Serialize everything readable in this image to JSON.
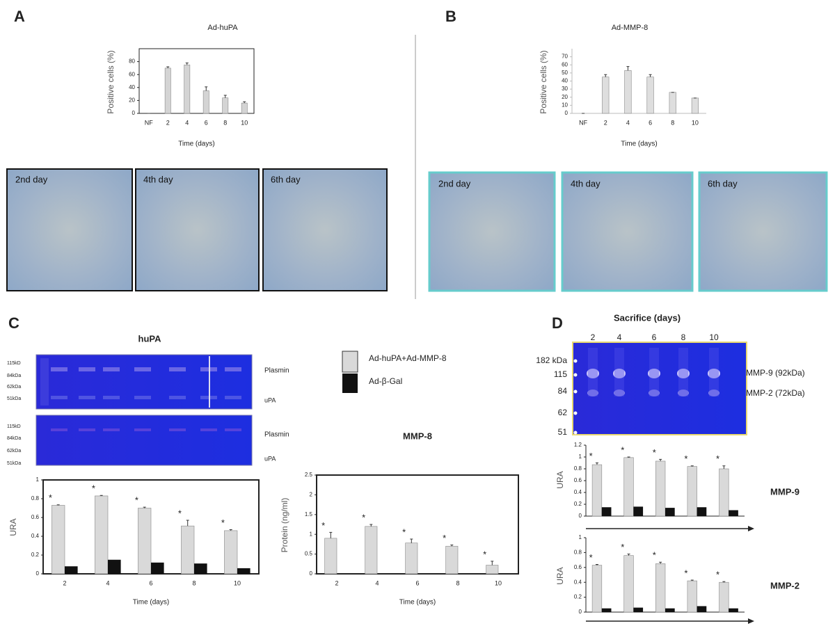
{
  "panels": [
    "A",
    "B",
    "C",
    "D"
  ],
  "micrographs": {
    "A": [
      "2nd day",
      "4th day",
      "6th day"
    ],
    "B": [
      "2nd day",
      "4th day",
      "6th day"
    ]
  },
  "gel_c": {
    "title": "huPA",
    "markers_top": [
      "115kD",
      "84kDa",
      "62kDa",
      "51kDa"
    ],
    "markers_bottom": [
      "115kD",
      "84kDa",
      "62kDa",
      "51kDa"
    ],
    "bands_top": [
      "Plasmin",
      "uPA"
    ],
    "bands_bottom": [
      "Plasmin",
      "uPA"
    ]
  },
  "gel_d": {
    "title": "Sacrifice (days)",
    "lanes": [
      "2",
      "4",
      "6",
      "8",
      "10"
    ],
    "markers": [
      "182 kDa",
      "115",
      "84",
      "62",
      "51"
    ],
    "bands": [
      "MMP-9 (92kDa)",
      "MMP-2 (72kDa)"
    ]
  },
  "chart_data": [
    {
      "type": "bar",
      "title": "Ad-huPA",
      "xlabel": "Time (days)",
      "ylabel": "Positive cells (%)",
      "categories": [
        "NF",
        "2",
        "4",
        "6",
        "8",
        "10"
      ],
      "values": [
        0,
        70,
        75,
        35,
        24,
        16
      ],
      "errors": [
        0,
        2,
        3,
        6,
        4,
        2
      ],
      "color": "#d4d4d4",
      "ylim": [
        0,
        100
      ],
      "yticks": [
        0,
        20,
        40,
        60,
        80
      ]
    },
    {
      "type": "bar",
      "title": "Ad-MMP-8",
      "xlabel": "Time (days)",
      "ylabel": "Positive cells (%)",
      "categories": [
        "NF",
        "2",
        "4",
        "6",
        "8",
        "10"
      ],
      "values": [
        0,
        45,
        53,
        45,
        26,
        19
      ],
      "errors": [
        0,
        3,
        5,
        3,
        0,
        0
      ],
      "color": "#dedede",
      "ylim": [
        0,
        80
      ],
      "yticks": [
        0,
        10,
        20,
        30,
        40,
        50,
        60,
        70
      ]
    },
    {
      "type": "bar",
      "xlabel": "Time (days)",
      "ylabel": "URA",
      "annotation": "*",
      "categories": [
        "2",
        "4",
        "6",
        "8",
        "10"
      ],
      "series": [
        {
          "name": "Ad-huPA+Ad-MMP-8",
          "color": "#d9d9d9",
          "values": [
            0.73,
            0.83,
            0.7,
            0.51,
            0.46
          ],
          "errors": [
            0.005,
            0.005,
            0.01,
            0.06,
            0.01
          ]
        },
        {
          "name": "Ad-β-Gal",
          "color": "#111111",
          "values": [
            0.08,
            0.15,
            0.12,
            0.11,
            0.06
          ]
        }
      ],
      "ylim": [
        0,
        1
      ],
      "yticks": [
        0,
        0.2,
        0.4,
        0.6,
        0.8,
        1
      ]
    },
    {
      "type": "bar",
      "title": "MMP-8",
      "xlabel": "Time (days)",
      "ylabel": "Protein (ng/ml)",
      "annotation": "*",
      "categories": [
        "2",
        "4",
        "6",
        "8",
        "10"
      ],
      "series": [
        {
          "name": "Ad-huPA+Ad-MMP-8",
          "color": "#d9d9d9",
          "values": [
            0.9,
            1.2,
            0.78,
            0.7,
            0.22
          ],
          "errors": [
            0.15,
            0.05,
            0.1,
            0.03,
            0.1
          ]
        },
        {
          "name": "Ad-β-Gal",
          "color": "#111111",
          "values": [
            0,
            0,
            0,
            0,
            0
          ]
        }
      ],
      "ylim": [
        0,
        2.5
      ],
      "yticks": [
        0,
        0.5,
        1,
        1.5,
        2,
        2.5
      ]
    },
    {
      "type": "bar",
      "title": "MMP-9",
      "ylabel": "URA",
      "annotation": "*",
      "categories": [
        null,
        null,
        null,
        null,
        null
      ],
      "series": [
        {
          "name": "Ad-huPA+Ad-MMP-8",
          "color": "#d9d9d9",
          "values": [
            0.87,
            0.99,
            0.93,
            0.84,
            0.8
          ],
          "errors": [
            0.03,
            0.01,
            0.03,
            0.01,
            0.05
          ]
        },
        {
          "name": "Ad-β-Gal",
          "color": "#111111",
          "values": [
            0.15,
            0.16,
            0.14,
            0.15,
            0.1
          ]
        }
      ],
      "ylim": [
        0,
        1.2
      ],
      "yticks": [
        0,
        0.2,
        0.4,
        0.6,
        0.8,
        1,
        1.2
      ]
    },
    {
      "type": "bar",
      "title": "MMP-2",
      "ylabel": "URA",
      "annotation": "*",
      "categories": [
        null,
        null,
        null,
        null,
        null
      ],
      "series": [
        {
          "name": "Ad-huPA+Ad-MMP-8",
          "color": "#d9d9d9",
          "values": [
            0.63,
            0.76,
            0.65,
            0.42,
            0.4
          ],
          "errors": [
            0.01,
            0.02,
            0.02,
            0.01,
            0.01
          ]
        },
        {
          "name": "Ad-β-Gal",
          "color": "#111111",
          "values": [
            0.05,
            0.06,
            0.05,
            0.08,
            0.05
          ]
        }
      ],
      "ylim": [
        0,
        1
      ],
      "yticks": [
        0,
        0.2,
        0.4,
        0.6,
        0.8,
        1
      ]
    }
  ]
}
